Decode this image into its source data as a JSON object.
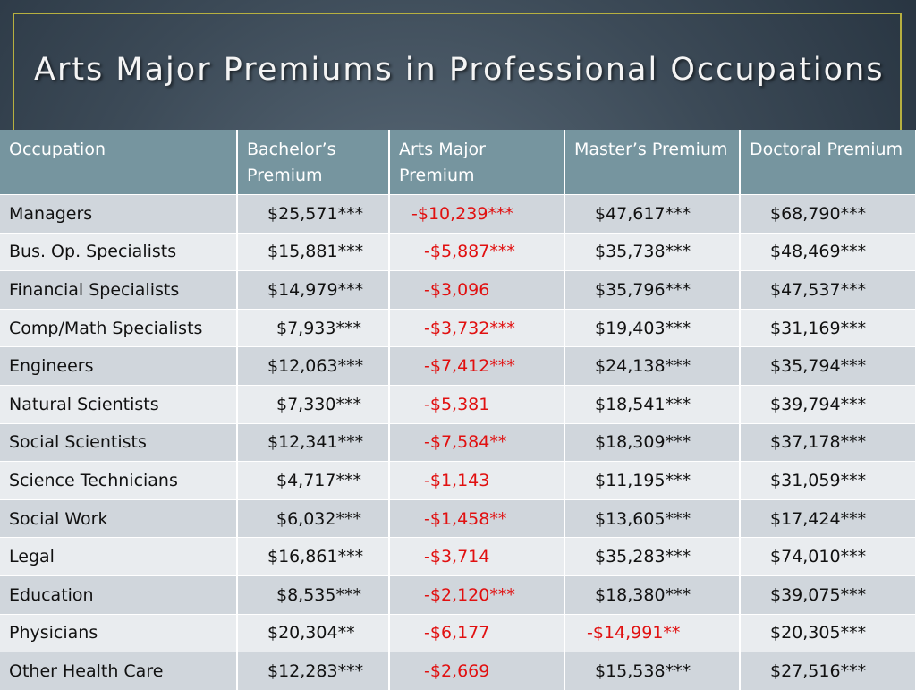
{
  "title": "Arts Major Premiums in Professional Occupations",
  "colors": {
    "header_bg": "#76959f",
    "negative": "#e11010",
    "frame": "#b7b040"
  },
  "headers": [
    "Occupation",
    "Bachelor’s Premium",
    "Arts Major Premium",
    "Master’s Premium",
    "Doctoral Premium"
  ],
  "rows": [
    {
      "occupation": "Managers",
      "bachelors": "$25,571***",
      "arts": "-$10,239***",
      "masters": "$47,617***",
      "doctoral": "$68,790***"
    },
    {
      "occupation": "Bus. Op. Specialists",
      "bachelors": "$15,881***",
      "arts": "-$5,887***",
      "masters": "$35,738***",
      "doctoral": "$48,469***"
    },
    {
      "occupation": "Financial Specialists",
      "bachelors": "$14,979***",
      "arts": "-$3,096",
      "masters": "$35,796***",
      "doctoral": "$47,537***"
    },
    {
      "occupation": "Comp/Math Specialists",
      "bachelors": "$7,933***",
      "arts": "-$3,732***",
      "masters": "$19,403***",
      "doctoral": "$31,169***"
    },
    {
      "occupation": "Engineers",
      "bachelors": "$12,063***",
      "arts": "-$7,412***",
      "masters": "$24,138***",
      "doctoral": "$35,794***"
    },
    {
      "occupation": "Natural Scientists",
      "bachelors": "$7,330***",
      "arts": "-$5,381",
      "masters": "$18,541***",
      "doctoral": "$39,794***"
    },
    {
      "occupation": "Social Scientists",
      "bachelors": "$12,341***",
      "arts": "-$7,584**",
      "masters": "$18,309***",
      "doctoral": "$37,178***"
    },
    {
      "occupation": "Science Technicians",
      "bachelors": "$4,717***",
      "arts": "-$1,143",
      "masters": "$11,195***",
      "doctoral": "$31,059***"
    },
    {
      "occupation": "Social Work",
      "bachelors": "$6,032***",
      "arts": "-$1,458**",
      "masters": "$13,605***",
      "doctoral": "$17,424***"
    },
    {
      "occupation": "Legal",
      "bachelors": "$16,861***",
      "arts": "-$3,714",
      "masters": "$35,283***",
      "doctoral": "$74,010***"
    },
    {
      "occupation": "Education",
      "bachelors": "$8,535***",
      "arts": "-$2,120***",
      "masters": "$18,380***",
      "doctoral": "$39,075***"
    },
    {
      "occupation": "Physicians",
      "bachelors": "$20,304**",
      "arts": "-$6,177",
      "masters": "-$14,991**",
      "doctoral": "$20,305***"
    },
    {
      "occupation": "Other Health Care",
      "bachelors": "$12,283***",
      "arts": "-$2,669",
      "masters": "$15,538***",
      "doctoral": "$27,516***"
    }
  ]
}
